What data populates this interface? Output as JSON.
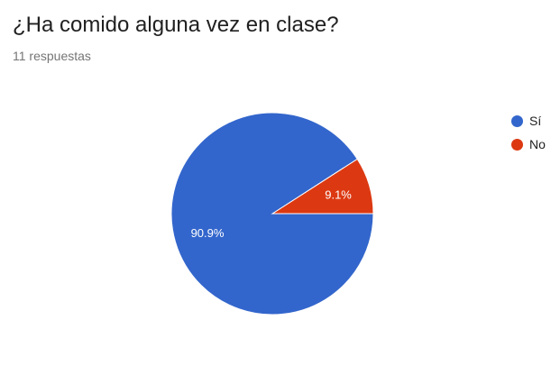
{
  "title": "¿Ha comido alguna vez en clase?",
  "subtitle": "11 respuestas",
  "chart_data": {
    "type": "pie",
    "title": "¿Ha comido alguna vez en clase?",
    "categories": [
      "Sí",
      "No"
    ],
    "values": [
      90.9,
      9.1
    ],
    "labels": [
      "90.9%",
      "9.1%"
    ],
    "colors": [
      "#3366cc",
      "#dc3912"
    ],
    "legend": "right"
  }
}
